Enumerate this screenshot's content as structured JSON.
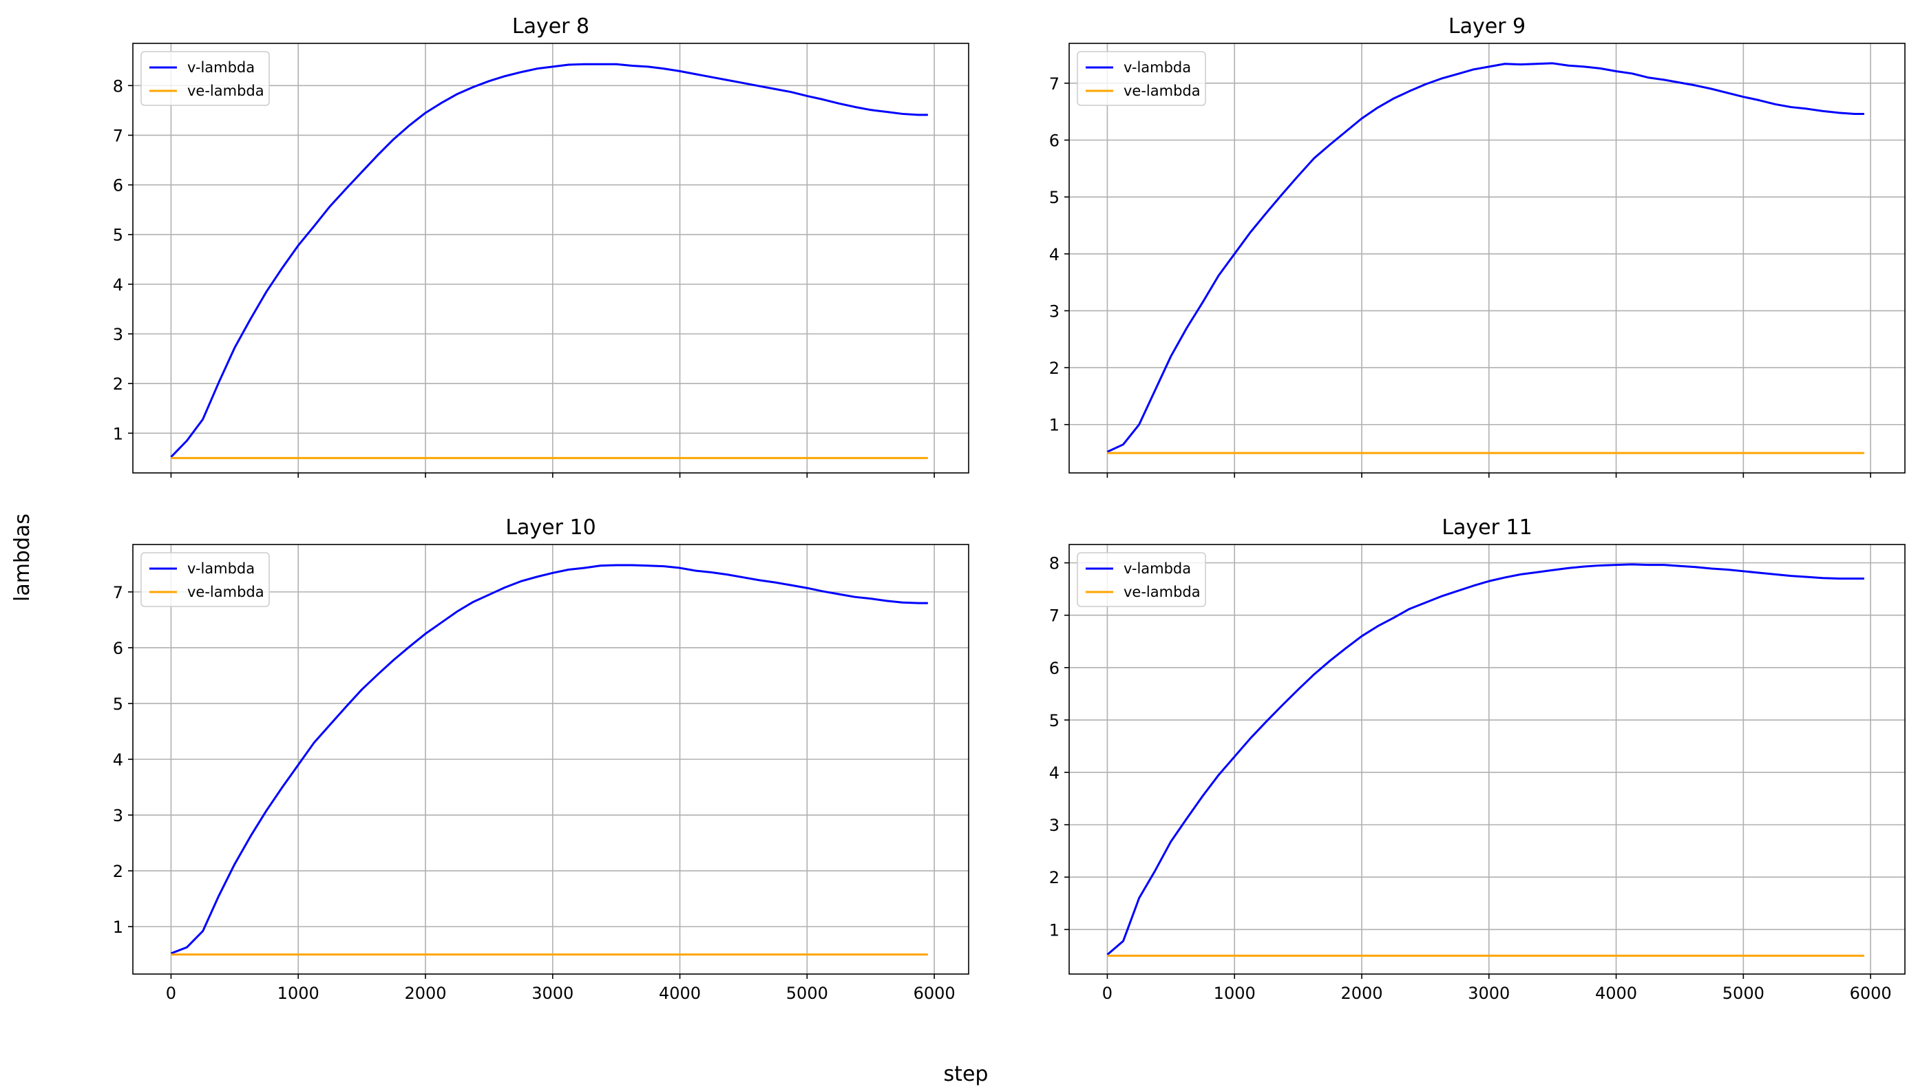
{
  "figure": {
    "xlabel": "step",
    "ylabel": "lambdas"
  },
  "colors": {
    "v_lambda": "#0000ff",
    "ve_lambda": "#ffa500",
    "grid": "#b0b0b0"
  },
  "chart_data": [
    {
      "type": "line",
      "title": "Layer 8",
      "xlim": [
        -300,
        6270
      ],
      "ylim": [
        0.2,
        8.85
      ],
      "xticks": [
        0,
        1000,
        2000,
        3000,
        4000,
        5000,
        6000
      ],
      "yticks": [
        1,
        2,
        3,
        4,
        5,
        6,
        7,
        8
      ],
      "show_xtick_labels": false,
      "grid": true,
      "legend": "upper-left",
      "series": [
        {
          "name": "v-lambda",
          "x": [
            0,
            125,
            250,
            375,
            500,
            625,
            750,
            875,
            1000,
            1125,
            1250,
            1375,
            1500,
            1625,
            1750,
            1875,
            2000,
            2125,
            2250,
            2375,
            2500,
            2625,
            2750,
            2875,
            3000,
            3125,
            3250,
            3375,
            3500,
            3625,
            3750,
            3875,
            4000,
            4125,
            4250,
            4375,
            4500,
            4625,
            4750,
            4875,
            5000,
            5125,
            5250,
            5375,
            5500,
            5625,
            5750,
            5875,
            5950
          ],
          "y": [
            0.52,
            0.85,
            1.28,
            2.02,
            2.72,
            3.3,
            3.85,
            4.33,
            4.78,
            5.17,
            5.57,
            5.92,
            6.26,
            6.6,
            6.92,
            7.2,
            7.45,
            7.65,
            7.83,
            7.97,
            8.09,
            8.19,
            8.27,
            8.34,
            8.38,
            8.42,
            8.43,
            8.43,
            8.43,
            8.4,
            8.38,
            8.34,
            8.29,
            8.23,
            8.17,
            8.11,
            8.05,
            7.99,
            7.93,
            7.87,
            7.79,
            7.72,
            7.64,
            7.57,
            7.51,
            7.47,
            7.43,
            7.41,
            7.41
          ]
        },
        {
          "name": "ve-lambda",
          "x": [
            0,
            5950
          ],
          "y": [
            0.5,
            0.5
          ]
        }
      ]
    },
    {
      "type": "line",
      "title": "Layer 9",
      "xlim": [
        -300,
        6270
      ],
      "ylim": [
        0.15,
        7.7
      ],
      "xticks": [
        0,
        1000,
        2000,
        3000,
        4000,
        5000,
        6000
      ],
      "yticks": [
        1,
        2,
        3,
        4,
        5,
        6,
        7
      ],
      "show_xtick_labels": false,
      "grid": true,
      "legend": "upper-left",
      "series": [
        {
          "name": "v-lambda",
          "x": [
            0,
            125,
            250,
            375,
            500,
            625,
            750,
            875,
            1000,
            1125,
            1250,
            1375,
            1500,
            1625,
            1750,
            1875,
            2000,
            2125,
            2250,
            2375,
            2500,
            2625,
            2750,
            2875,
            3000,
            3125,
            3250,
            3375,
            3500,
            3625,
            3750,
            3875,
            4000,
            4125,
            4250,
            4375,
            4500,
            4625,
            4750,
            4875,
            5000,
            5125,
            5250,
            5375,
            5500,
            5625,
            5750,
            5875,
            5950
          ],
          "y": [
            0.52,
            0.65,
            1.0,
            1.6,
            2.2,
            2.7,
            3.15,
            3.62,
            4.0,
            4.38,
            4.72,
            5.05,
            5.37,
            5.68,
            5.92,
            6.15,
            6.38,
            6.57,
            6.73,
            6.86,
            6.98,
            7.08,
            7.16,
            7.24,
            7.29,
            7.34,
            7.33,
            7.34,
            7.35,
            7.31,
            7.29,
            7.26,
            7.21,
            7.17,
            7.1,
            7.06,
            7.01,
            6.96,
            6.9,
            6.83,
            6.76,
            6.7,
            6.63,
            6.58,
            6.55,
            6.51,
            6.48,
            6.46,
            6.46
          ]
        },
        {
          "name": "ve-lambda",
          "x": [
            0,
            5950
          ],
          "y": [
            0.5,
            0.5
          ]
        }
      ]
    },
    {
      "type": "line",
      "title": "Layer 10",
      "xlim": [
        -300,
        6270
      ],
      "ylim": [
        0.15,
        7.85
      ],
      "xticks": [
        0,
        1000,
        2000,
        3000,
        4000,
        5000,
        6000
      ],
      "yticks": [
        1,
        2,
        3,
        4,
        5,
        6,
        7
      ],
      "show_xtick_labels": true,
      "grid": true,
      "legend": "upper-left",
      "series": [
        {
          "name": "v-lambda",
          "x": [
            0,
            125,
            250,
            375,
            500,
            625,
            750,
            875,
            1000,
            1125,
            1250,
            1375,
            1500,
            1625,
            1750,
            1875,
            2000,
            2125,
            2250,
            2375,
            2500,
            2625,
            2750,
            2875,
            3000,
            3125,
            3250,
            3375,
            3500,
            3625,
            3750,
            3875,
            4000,
            4125,
            4250,
            4375,
            4500,
            4625,
            4750,
            4875,
            5000,
            5125,
            5250,
            5375,
            5500,
            5625,
            5750,
            5875,
            5950
          ],
          "y": [
            0.52,
            0.63,
            0.92,
            1.55,
            2.12,
            2.62,
            3.08,
            3.5,
            3.9,
            4.3,
            4.62,
            4.94,
            5.25,
            5.52,
            5.78,
            6.02,
            6.25,
            6.45,
            6.65,
            6.82,
            6.95,
            7.08,
            7.19,
            7.27,
            7.34,
            7.4,
            7.43,
            7.47,
            7.48,
            7.48,
            7.47,
            7.46,
            7.43,
            7.38,
            7.35,
            7.31,
            7.26,
            7.21,
            7.17,
            7.12,
            7.07,
            7.01,
            6.96,
            6.91,
            6.88,
            6.84,
            6.81,
            6.8,
            6.8
          ]
        },
        {
          "name": "ve-lambda",
          "x": [
            0,
            5950
          ],
          "y": [
            0.5,
            0.5
          ]
        }
      ]
    },
    {
      "type": "line",
      "title": "Layer 11",
      "xlim": [
        -300,
        6270
      ],
      "ylim": [
        0.15,
        8.35
      ],
      "xticks": [
        0,
        1000,
        2000,
        3000,
        4000,
        5000,
        6000
      ],
      "yticks": [
        1,
        2,
        3,
        4,
        5,
        6,
        7,
        8
      ],
      "show_xtick_labels": true,
      "grid": true,
      "legend": "upper-left",
      "series": [
        {
          "name": "v-lambda",
          "x": [
            0,
            125,
            250,
            375,
            500,
            625,
            750,
            875,
            1000,
            1125,
            1250,
            1375,
            1500,
            1625,
            1750,
            1875,
            2000,
            2125,
            2250,
            2375,
            2500,
            2625,
            2750,
            2875,
            3000,
            3125,
            3250,
            3375,
            3500,
            3625,
            3750,
            3875,
            4000,
            4125,
            4250,
            4375,
            4500,
            4625,
            4750,
            4875,
            5000,
            5125,
            5250,
            5375,
            5500,
            5625,
            5750,
            5875,
            5950
          ],
          "y": [
            0.52,
            0.78,
            1.6,
            2.12,
            2.68,
            3.12,
            3.55,
            3.95,
            4.3,
            4.65,
            4.97,
            5.28,
            5.58,
            5.87,
            6.13,
            6.37,
            6.6,
            6.79,
            6.95,
            7.12,
            7.24,
            7.36,
            7.46,
            7.56,
            7.65,
            7.72,
            7.78,
            7.82,
            7.86,
            7.9,
            7.93,
            7.95,
            7.96,
            7.97,
            7.96,
            7.96,
            7.94,
            7.92,
            7.89,
            7.87,
            7.84,
            7.81,
            7.78,
            7.75,
            7.73,
            7.71,
            7.7,
            7.7,
            7.7
          ]
        },
        {
          "name": "ve-lambda",
          "x": [
            0,
            5950
          ],
          "y": [
            0.5,
            0.5
          ]
        }
      ]
    }
  ]
}
